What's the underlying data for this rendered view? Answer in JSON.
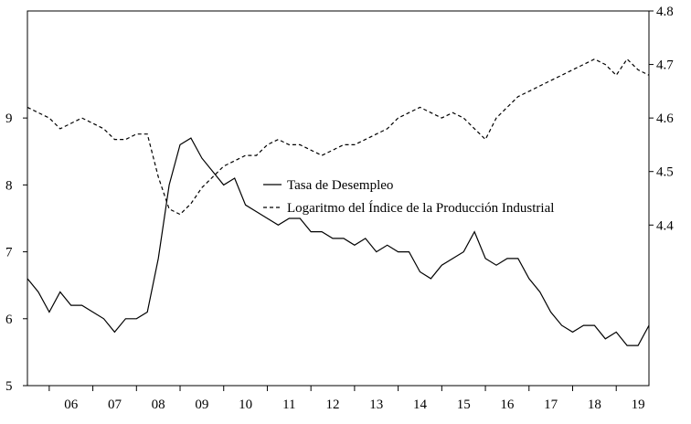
{
  "chart_data": {
    "type": "line",
    "x_axis": {
      "ticks": [
        "06",
        "07",
        "08",
        "09",
        "10",
        "11",
        "12",
        "13",
        "14",
        "15",
        "16",
        "17",
        "18",
        "19"
      ],
      "range": [
        2005.5,
        2019.75
      ]
    },
    "y_left": {
      "ticks": [
        "5",
        "6",
        "7",
        "8",
        "9"
      ],
      "range": [
        5,
        10.6
      ]
    },
    "y_right": {
      "ticks": [
        "4.4",
        "4.5",
        "4.6",
        "4.7",
        "4.8"
      ],
      "range": [
        4.1,
        4.8
      ]
    },
    "legend": {
      "placement": "center",
      "entries": [
        {
          "label": "Tasa de Desempleo",
          "style": "solid"
        },
        {
          "label": "Logaritmo del Índice de la Producción Industrial",
          "style": "dashed"
        }
      ]
    },
    "series": [
      {
        "name": "Tasa de Desempleo",
        "axis": "left",
        "x": [
          2005.5,
          2005.75,
          2006.0,
          2006.25,
          2006.5,
          2006.75,
          2007.0,
          2007.25,
          2007.5,
          2007.75,
          2008.0,
          2008.25,
          2008.5,
          2008.75,
          2009.0,
          2009.25,
          2009.5,
          2009.75,
          2010.0,
          2010.25,
          2010.5,
          2010.75,
          2011.0,
          2011.25,
          2011.5,
          2011.75,
          2012.0,
          2012.25,
          2012.5,
          2012.75,
          2013.0,
          2013.25,
          2013.5,
          2013.75,
          2014.0,
          2014.25,
          2014.5,
          2014.75,
          2015.0,
          2015.25,
          2015.5,
          2015.75,
          2016.0,
          2016.25,
          2016.5,
          2016.75,
          2017.0,
          2017.25,
          2017.5,
          2017.75,
          2018.0,
          2018.25,
          2018.5,
          2018.75,
          2019.0,
          2019.25,
          2019.5,
          2019.75
        ],
        "values": [
          6.6,
          6.4,
          6.1,
          6.4,
          6.2,
          6.2,
          6.1,
          6.0,
          5.8,
          6.0,
          6.0,
          6.1,
          6.9,
          8.0,
          8.6,
          8.7,
          8.4,
          8.2,
          8.0,
          8.1,
          7.7,
          7.6,
          7.5,
          7.4,
          7.5,
          7.5,
          7.3,
          7.3,
          7.2,
          7.2,
          7.1,
          7.2,
          7.0,
          7.1,
          7.0,
          7.0,
          6.7,
          6.6,
          6.8,
          6.9,
          7.0,
          7.3,
          6.9,
          6.8,
          6.9,
          6.9,
          6.6,
          6.4,
          6.1,
          5.9,
          5.8,
          5.9,
          5.9,
          5.7,
          5.8,
          5.6,
          5.6,
          5.9
        ]
      },
      {
        "name": "Logaritmo del Índice de la Producción Industrial",
        "axis": "right",
        "x": [
          2005.5,
          2005.75,
          2006.0,
          2006.25,
          2006.5,
          2006.75,
          2007.0,
          2007.25,
          2007.5,
          2007.75,
          2008.0,
          2008.25,
          2008.5,
          2008.75,
          2009.0,
          2009.25,
          2009.5,
          2009.75,
          2010.0,
          2010.25,
          2010.5,
          2010.75,
          2011.0,
          2011.25,
          2011.5,
          2011.75,
          2012.0,
          2012.25,
          2012.5,
          2012.75,
          2013.0,
          2013.25,
          2013.5,
          2013.75,
          2014.0,
          2014.25,
          2014.5,
          2014.75,
          2015.0,
          2015.25,
          2015.5,
          2015.75,
          2016.0,
          2016.25,
          2016.5,
          2016.75,
          2017.0,
          2017.25,
          2017.5,
          2017.75,
          2018.0,
          2018.25,
          2018.5,
          2018.75,
          2019.0,
          2019.25,
          2019.5,
          2019.75
        ],
        "values": [
          4.62,
          4.61,
          4.6,
          4.58,
          4.59,
          4.6,
          4.59,
          4.58,
          4.56,
          4.56,
          4.57,
          4.57,
          4.49,
          4.43,
          4.42,
          4.44,
          4.47,
          4.49,
          4.51,
          4.52,
          4.53,
          4.53,
          4.55,
          4.56,
          4.55,
          4.55,
          4.54,
          4.53,
          4.54,
          4.55,
          4.55,
          4.56,
          4.57,
          4.58,
          4.6,
          4.61,
          4.62,
          4.61,
          4.6,
          4.61,
          4.6,
          4.58,
          4.56,
          4.6,
          4.62,
          4.64,
          4.65,
          4.66,
          4.67,
          4.68,
          4.69,
          4.7,
          4.71,
          4.7,
          4.68,
          4.71,
          4.69,
          4.68
        ]
      }
    ]
  }
}
